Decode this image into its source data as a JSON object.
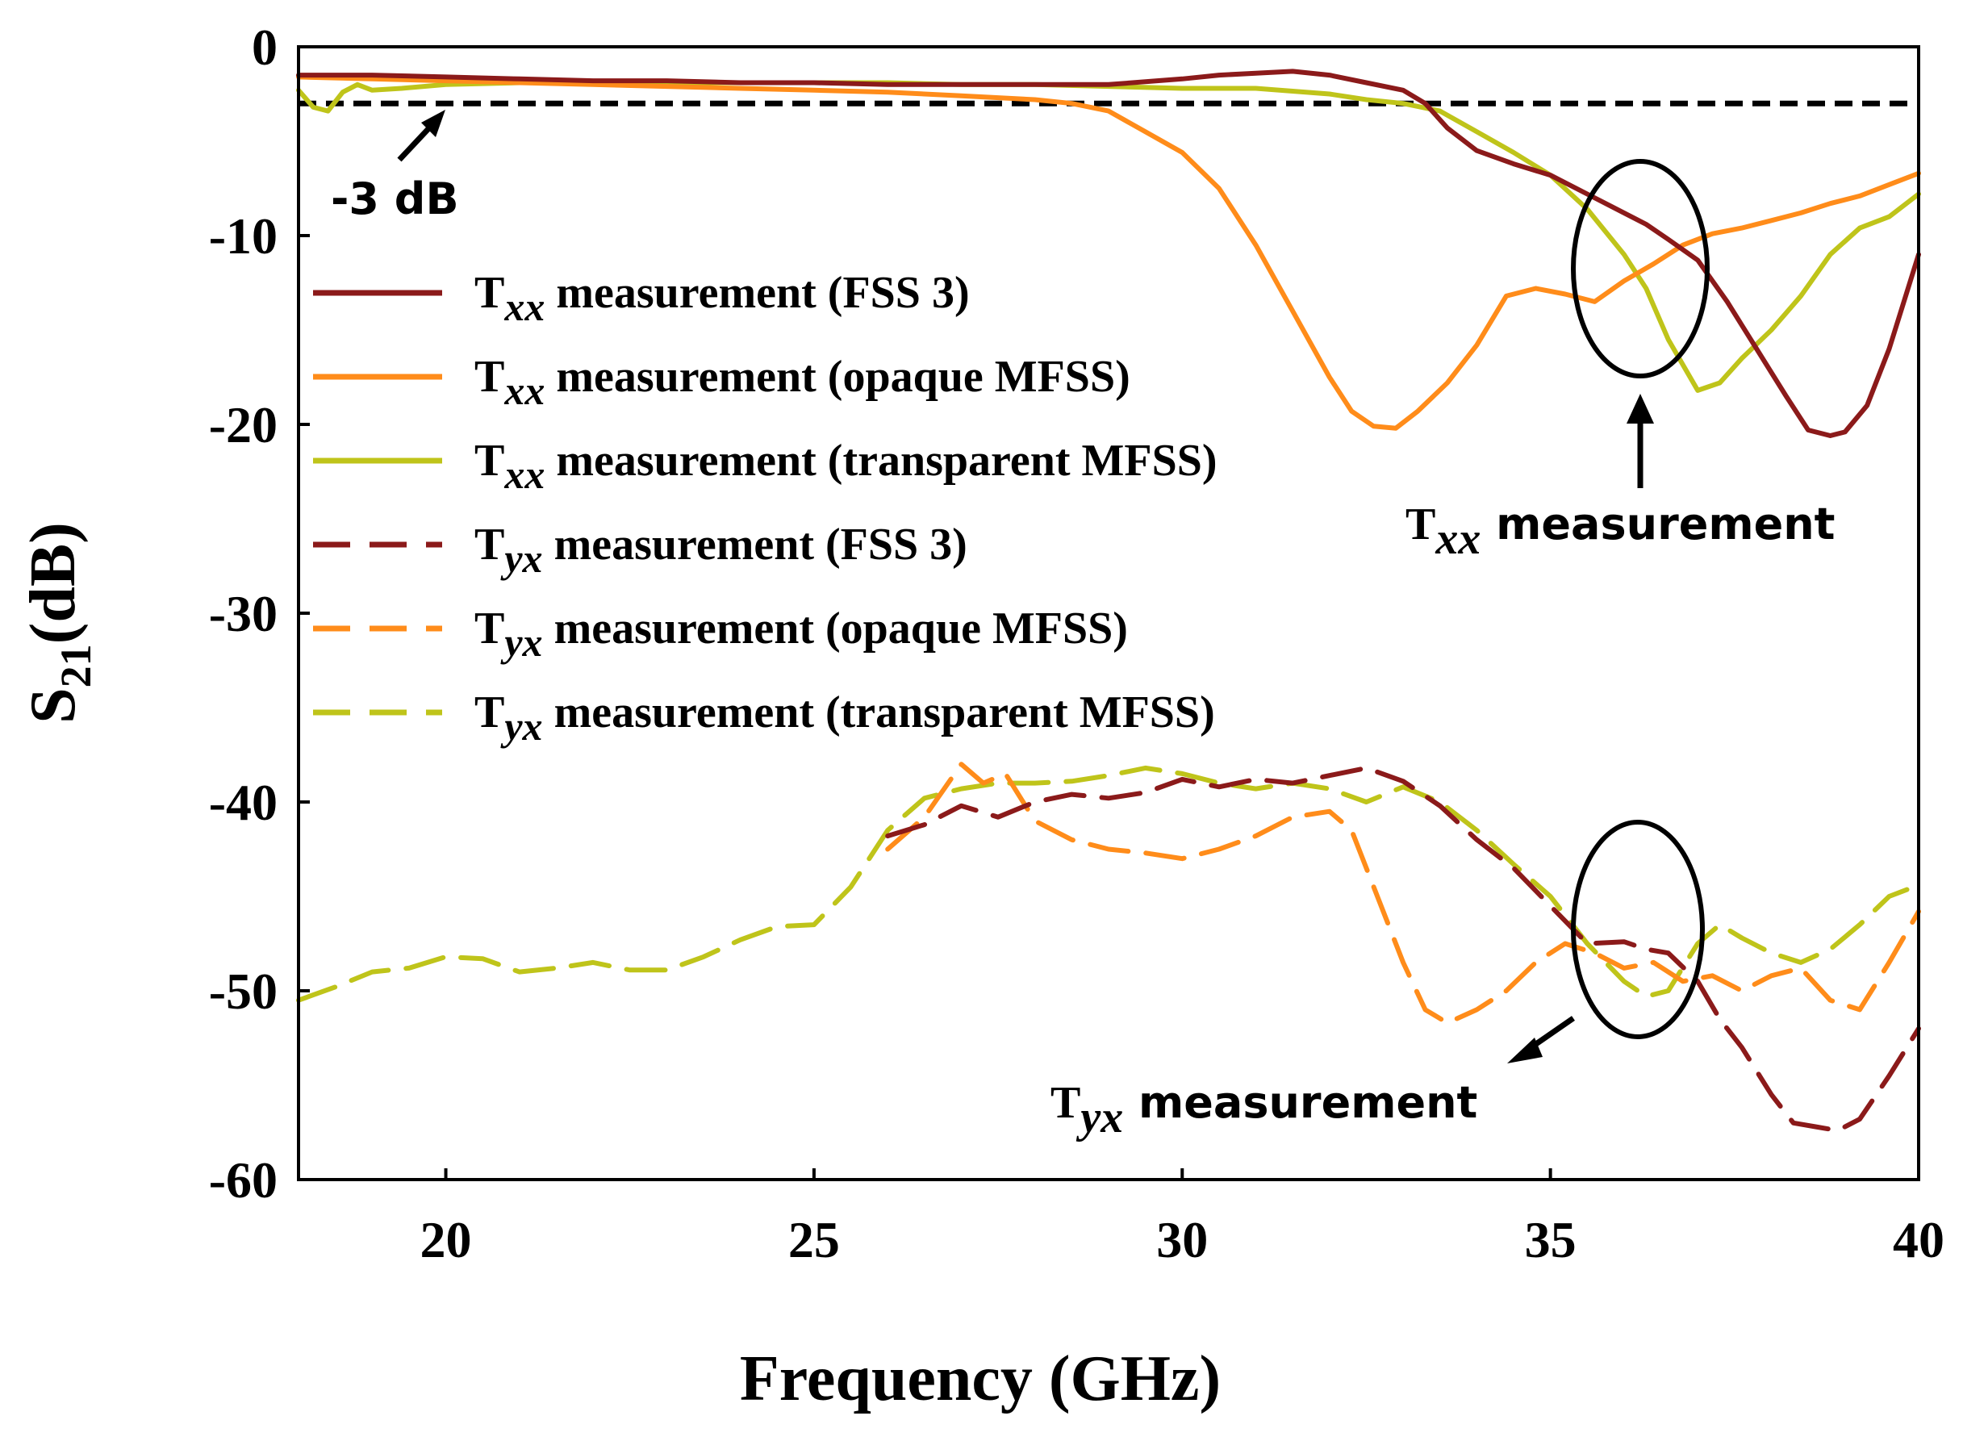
{
  "chart_data": {
    "type": "line",
    "xlabel": "Frequency (GHz)",
    "ylabel_main": "S",
    "ylabel_sub": "21",
    "ylabel_rest": "(dB)",
    "xlim": [
      18,
      40
    ],
    "ylim": [
      -60,
      0
    ],
    "xticks": [
      20,
      25,
      30,
      35,
      40
    ],
    "yticks": [
      0,
      -10,
      -20,
      -30,
      -40,
      -50,
      -60
    ],
    "grid": false,
    "legend_position": "upper-left",
    "reference_line": {
      "y": -3,
      "label": "-3 dB",
      "style": "dashed",
      "color": "#000000"
    },
    "annotations": [
      {
        "main": "T",
        "sub": "xx",
        "rest": " measurement",
        "target": "Txx curves near 36.2 GHz"
      },
      {
        "main": "T",
        "sub": "yx",
        "rest": " measurement",
        "target": "Tyx curves near 36.2 GHz"
      }
    ],
    "series": [
      {
        "legend_main": "T",
        "legend_sub": "xx",
        "legend_rest": " measurement (FSS 3)",
        "color": "#8B1A1A",
        "dash": "solid",
        "x": [
          18,
          19,
          20,
          21,
          22,
          23,
          24,
          25,
          26,
          27,
          28,
          29,
          30,
          30.5,
          31,
          31.5,
          32,
          32.5,
          33,
          33.3,
          33.6,
          34,
          34.5,
          35,
          35.5,
          36,
          36.3,
          36.6,
          37,
          37.4,
          37.8,
          38.2,
          38.5,
          38.8,
          39,
          39.3,
          39.6,
          40
        ],
        "y": [
          -1.5,
          -1.5,
          -1.6,
          -1.7,
          -1.8,
          -1.8,
          -1.9,
          -1.9,
          -2.0,
          -2.0,
          -2.0,
          -2.0,
          -1.7,
          -1.5,
          -1.4,
          -1.3,
          -1.5,
          -1.9,
          -2.3,
          -3.0,
          -4.3,
          -5.5,
          -6.2,
          -6.8,
          -7.8,
          -8.8,
          -9.4,
          -10.2,
          -11.3,
          -13.5,
          -16.0,
          -18.5,
          -20.3,
          -20.6,
          -20.4,
          -19.0,
          -16.0,
          -11.0
        ]
      },
      {
        "legend_main": "T",
        "legend_sub": "xx",
        "legend_rest": " measurement (opaque MFSS)",
        "color": "#FF8C1A",
        "dash": "solid",
        "x": [
          18,
          19,
          20,
          21,
          22,
          23,
          24,
          25,
          26,
          27,
          28,
          28.5,
          29,
          29.5,
          30,
          30.5,
          31,
          31.5,
          32,
          32.3,
          32.6,
          32.9,
          33.2,
          33.6,
          34,
          34.4,
          34.8,
          35.2,
          35.6,
          36,
          36.4,
          36.8,
          37.2,
          37.6,
          38,
          38.4,
          38.8,
          39.2,
          39.6,
          40
        ],
        "y": [
          -1.6,
          -1.7,
          -1.8,
          -1.9,
          -2.0,
          -2.1,
          -2.2,
          -2.3,
          -2.4,
          -2.6,
          -2.8,
          -3.0,
          -3.4,
          -4.5,
          -5.6,
          -7.5,
          -10.5,
          -14.0,
          -17.5,
          -19.3,
          -20.1,
          -20.2,
          -19.3,
          -17.8,
          -15.8,
          -13.2,
          -12.8,
          -13.1,
          -13.5,
          -12.4,
          -11.5,
          -10.5,
          -9.9,
          -9.6,
          -9.2,
          -8.8,
          -8.3,
          -7.9,
          -7.3,
          -6.7
        ]
      },
      {
        "legend_main": "T",
        "legend_sub": "xx",
        "legend_rest": " measurement (transparent MFSS)",
        "color": "#BFC41A",
        "dash": "solid",
        "x": [
          18,
          18.2,
          18.4,
          18.6,
          18.8,
          19,
          19.4,
          20,
          21,
          22,
          23,
          24,
          25,
          26,
          27,
          28,
          29,
          30,
          31,
          32,
          32.5,
          33,
          33.5,
          34,
          34.5,
          35,
          35.5,
          36,
          36.3,
          36.6,
          37,
          37.3,
          37.6,
          38,
          38.4,
          38.8,
          39.2,
          39.6,
          40
        ],
        "y": [
          -2.3,
          -3.2,
          -3.4,
          -2.4,
          -2.0,
          -2.3,
          -2.2,
          -2.0,
          -1.9,
          -1.9,
          -1.9,
          -1.9,
          -1.9,
          -1.9,
          -2.0,
          -2.0,
          -2.1,
          -2.2,
          -2.2,
          -2.5,
          -2.8,
          -3.0,
          -3.4,
          -4.5,
          -5.6,
          -6.8,
          -8.6,
          -11.0,
          -12.8,
          -15.5,
          -18.2,
          -17.8,
          -16.5,
          -15.0,
          -13.2,
          -11.0,
          -9.6,
          -9.0,
          -7.8
        ]
      },
      {
        "legend_main": "T",
        "legend_sub": "yx",
        "legend_rest": " measurement (FSS 3)",
        "color": "#8B1A1A",
        "dash": "dashed",
        "x": [
          26,
          26.5,
          27,
          27.5,
          28,
          28.5,
          29,
          29.5,
          30,
          30.5,
          31,
          31.5,
          32,
          32.5,
          33,
          33.5,
          34,
          34.5,
          35,
          35.5,
          36,
          36.3,
          36.6,
          37,
          37.3,
          37.6,
          38,
          38.3,
          38.6,
          38.9,
          39.2,
          39.6,
          40
        ],
        "y": [
          -41.8,
          -41.2,
          -40.2,
          -40.8,
          -40.0,
          -39.6,
          -39.8,
          -39.5,
          -38.8,
          -39.2,
          -38.8,
          -39.0,
          -38.6,
          -38.2,
          -38.9,
          -40.2,
          -42.0,
          -43.5,
          -45.5,
          -47.5,
          -47.4,
          -47.8,
          -48.0,
          -49.5,
          -51.5,
          -53.0,
          -55.5,
          -57.0,
          -57.2,
          -57.4,
          -56.8,
          -54.5,
          -52.0
        ]
      },
      {
        "legend_main": "T",
        "legend_sub": "yx",
        "legend_rest": " measurement (opaque MFSS)",
        "color": "#FF8C1A",
        "dash": "dashed",
        "x": [
          26,
          26.5,
          27,
          27.3,
          27.6,
          28,
          28.5,
          29,
          29.5,
          30,
          30.5,
          31,
          31.5,
          32,
          32.3,
          32.6,
          33,
          33.3,
          33.6,
          34,
          34.4,
          34.8,
          35.2,
          35.6,
          36,
          36.4,
          36.8,
          37.2,
          37.6,
          38,
          38.4,
          38.8,
          39.2,
          39.6,
          40
        ],
        "y": [
          -42.5,
          -40.8,
          -38.0,
          -39.0,
          -38.5,
          -41.0,
          -42.0,
          -42.5,
          -42.7,
          -43.0,
          -42.5,
          -41.8,
          -40.8,
          -40.5,
          -41.5,
          -44.5,
          -48.5,
          -51.0,
          -51.7,
          -51.0,
          -50.0,
          -48.5,
          -47.5,
          -48.0,
          -48.8,
          -48.5,
          -49.5,
          -49.2,
          -50.0,
          -49.2,
          -48.8,
          -50.5,
          -51.0,
          -48.5,
          -45.8
        ]
      },
      {
        "legend_main": "T",
        "legend_sub": "yx",
        "legend_rest": " measurement (transparent MFSS)",
        "color": "#BFC41A",
        "dash": "dashed",
        "x": [
          18,
          18.5,
          19,
          19.5,
          20,
          20.5,
          21,
          21.5,
          22,
          22.5,
          23,
          23.5,
          24,
          24.5,
          25,
          25.5,
          26,
          26.5,
          27,
          27.5,
          28,
          28.5,
          29,
          29.5,
          30,
          30.5,
          31,
          31.5,
          32,
          32.5,
          33,
          33.5,
          34,
          34.5,
          35,
          35.5,
          36,
          36.3,
          36.6,
          37,
          37.3,
          37.6,
          38,
          38.4,
          38.8,
          39.2,
          39.6,
          40
        ],
        "y": [
          -50.5,
          -49.8,
          -49.0,
          -48.8,
          -48.2,
          -48.3,
          -49.0,
          -48.8,
          -48.5,
          -48.9,
          -48.9,
          -48.2,
          -47.3,
          -46.6,
          -46.5,
          -44.5,
          -41.5,
          -39.8,
          -39.3,
          -39.0,
          -39.0,
          -38.9,
          -38.6,
          -38.2,
          -38.5,
          -39.0,
          -39.3,
          -39.0,
          -39.3,
          -40.0,
          -39.2,
          -40.0,
          -41.5,
          -43.3,
          -45.0,
          -47.5,
          -49.5,
          -50.3,
          -50.0,
          -47.5,
          -46.5,
          -47.2,
          -48.0,
          -48.5,
          -47.8,
          -46.5,
          -45.0,
          -44.4
        ]
      }
    ]
  }
}
